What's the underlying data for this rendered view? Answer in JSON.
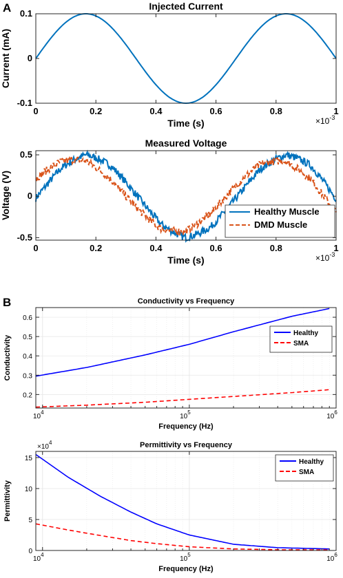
{
  "panel_labels": {
    "a": "A",
    "b": "B"
  },
  "colors": {
    "blue": "#0072BD",
    "orange": "#D95319",
    "navy": "#0000FF",
    "red": "#FF0000",
    "axis": "#262626",
    "grid": "#E6E6E6"
  },
  "chart_data": [
    {
      "type": "line",
      "title": "Injected Current",
      "xlabel": "Time (s)",
      "ylabel": "Current (mA)",
      "x_exponent": "×10",
      "x_exponent_power": "-3",
      "xlim": [
        0,
        0.001
      ],
      "ylim": [
        -0.1,
        0.1
      ],
      "xticks": [
        0,
        0.0002,
        0.0004,
        0.0006,
        0.0008,
        0.001
      ],
      "xtick_labels": [
        "0",
        "0.2",
        "0.4",
        "0.6",
        "0.8",
        "1"
      ],
      "yticks": [
        -0.1,
        0,
        0.1
      ],
      "ytick_labels": [
        "-0.1",
        "0",
        "0.1"
      ],
      "grid": false,
      "series": [
        {
          "color": "#0072BD",
          "dash": "solid",
          "x": [
            0,
            8.33e-05,
            0.0001667,
            0.00025,
            0.0003333,
            0.0004167,
            0.0005,
            0.0005833,
            0.0006667,
            0.00075,
            0.0008333,
            0.0009167,
            0.001
          ],
          "y": [
            0,
            0.0707,
            0.1,
            0.0707,
            0,
            -0.0707,
            -0.1,
            -0.0707,
            0,
            0.0707,
            0.1,
            0.0707,
            0
          ]
        }
      ]
    },
    {
      "type": "line",
      "title": "Measured Voltage",
      "xlabel": "Time (s)",
      "ylabel": "Voltage (V)",
      "x_exponent": "×10",
      "x_exponent_power": "-3",
      "xlim": [
        0,
        0.001
      ],
      "ylim": [
        -0.53,
        0.55
      ],
      "xticks": [
        0,
        0.0002,
        0.0004,
        0.0006,
        0.0008,
        0.001
      ],
      "xtick_labels": [
        "0",
        "0.2",
        "0.4",
        "0.6",
        "0.8",
        "1"
      ],
      "yticks": [
        -0.5,
        0,
        0.5
      ],
      "ytick_labels": [
        "-0.5",
        "0",
        "0.5"
      ],
      "grid": false,
      "legend_position": "bottom-right",
      "series": [
        {
          "name": "Healthy Muscle",
          "color": "#0072BD",
          "dash": "solid",
          "x": [
            0,
            8.33e-05,
            0.0001667,
            0.00025,
            0.0003333,
            0.0004167,
            0.0005,
            0.0005833,
            0.0006667,
            0.00075,
            0.0008333,
            0.0009167,
            0.001
          ],
          "y": [
            0,
            0.35,
            0.5,
            0.35,
            0,
            -0.35,
            -0.5,
            -0.35,
            0,
            0.35,
            0.5,
            0.35,
            -0.1
          ]
        },
        {
          "name": "DMD Muscle",
          "color": "#D95319",
          "dash": "dashed",
          "x": [
            0,
            8.33e-05,
            0.0001667,
            0.00025,
            0.0003333,
            0.0004167,
            0.0005,
            0.0005833,
            0.0006667,
            0.00075,
            0.0008333,
            0.0009167,
            0.001
          ],
          "y": [
            0.23,
            0.42,
            0.45,
            0.25,
            -0.08,
            -0.37,
            -0.44,
            -0.25,
            0.08,
            0.37,
            0.44,
            0.25,
            -0.2
          ]
        }
      ]
    },
    {
      "type": "line",
      "title": "Conductivity vs Frequency",
      "xlabel": "Frequency (Hz)",
      "ylabel": "Conductivity",
      "xscale": "log",
      "xlim": [
        9000,
        1000000
      ],
      "ylim": [
        0.13,
        0.65
      ],
      "xticks": [
        10000,
        100000,
        1000000
      ],
      "xtick_labels": [
        "10",
        "10",
        "10"
      ],
      "xtick_powers": [
        "4",
        "5",
        "6"
      ],
      "yticks": [
        0.2,
        0.3,
        0.4,
        0.5,
        0.6
      ],
      "ytick_labels": [
        "0.2",
        "0.3",
        "0.4",
        "0.5",
        "0.6"
      ],
      "grid": true,
      "legend_position": "right",
      "series": [
        {
          "name": "Healthy",
          "color": "#0000FF",
          "dash": "solid",
          "x": [
            9000,
            20000,
            50000,
            100000,
            200000,
            500000,
            900000
          ],
          "y": [
            0.295,
            0.34,
            0.405,
            0.46,
            0.525,
            0.605,
            0.645
          ]
        },
        {
          "name": "SMA",
          "color": "#FF0000",
          "dash": "dashed",
          "x": [
            9000,
            20000,
            50000,
            100000,
            200000,
            500000,
            900000
          ],
          "y": [
            0.135,
            0.145,
            0.16,
            0.175,
            0.19,
            0.21,
            0.225
          ]
        }
      ]
    },
    {
      "type": "line",
      "title": "Permittivity vs Frequency",
      "xlabel": "Frequency (Hz)",
      "ylabel": "Permittivity",
      "y_exponent": "×10",
      "y_exponent_power": "4",
      "xscale": "log",
      "xlim": [
        9000,
        1000000
      ],
      "ylim": [
        0,
        160000
      ],
      "xticks": [
        10000,
        100000,
        1000000
      ],
      "xtick_labels": [
        "10",
        "10",
        "10"
      ],
      "xtick_powers": [
        "4",
        "5",
        "6"
      ],
      "yticks": [
        0,
        50000,
        100000,
        150000
      ],
      "ytick_labels": [
        "0",
        "5",
        "10",
        "15"
      ],
      "grid": true,
      "legend_position": "top-right",
      "series": [
        {
          "name": "Healthy",
          "color": "#0000FF",
          "dash": "solid",
          "x": [
            9000,
            15000,
            25000,
            40000,
            60000,
            100000,
            200000,
            400000,
            900000
          ],
          "y": [
            155000,
            118000,
            87000,
            62000,
            43000,
            25000,
            10000,
            4500,
            2500
          ]
        },
        {
          "name": "SMA",
          "color": "#FF0000",
          "dash": "dashed",
          "x": [
            9000,
            15000,
            25000,
            40000,
            60000,
            100000,
            200000,
            400000,
            900000
          ],
          "y": [
            43000,
            33000,
            24000,
            16000,
            11000,
            6000,
            2500,
            1200,
            800
          ]
        }
      ]
    }
  ]
}
